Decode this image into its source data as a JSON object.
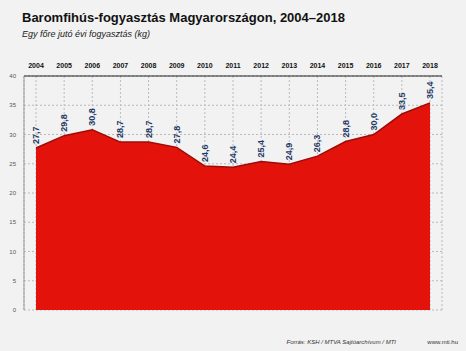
{
  "chart_data": {
    "type": "area",
    "title": "Baromfihús-fogyasztás Magyarországon, 2004–2018",
    "subtitle": "Egy főre jutó évi fogyasztás (kg)",
    "categories": [
      "2004",
      "2005",
      "2006",
      "2007",
      "2008",
      "2009",
      "2010",
      "2011",
      "2012",
      "2013",
      "2014",
      "2015",
      "2016",
      "2017",
      "2018"
    ],
    "values": [
      27.7,
      29.8,
      30.8,
      28.7,
      28.7,
      27.8,
      24.6,
      24.4,
      25.4,
      24.9,
      26.3,
      28.8,
      30.0,
      33.5,
      35.4
    ],
    "value_labels": [
      "27,7",
      "29,8",
      "30,8",
      "28,7",
      "28,7",
      "27,8",
      "24,6",
      "24,4",
      "25,4",
      "24,9",
      "26,3",
      "28,8",
      "30,0",
      "33,5",
      "35,4"
    ],
    "color": "#e3120b",
    "ylim": [
      0,
      40
    ],
    "yticks": [
      0,
      5,
      10,
      15,
      20,
      25,
      30,
      35,
      40
    ],
    "grid": true,
    "data_labels": true,
    "source": "Forrás: KSH / MTVA Sajtóarchívum / MTI",
    "footer": "www.mti.hu"
  }
}
